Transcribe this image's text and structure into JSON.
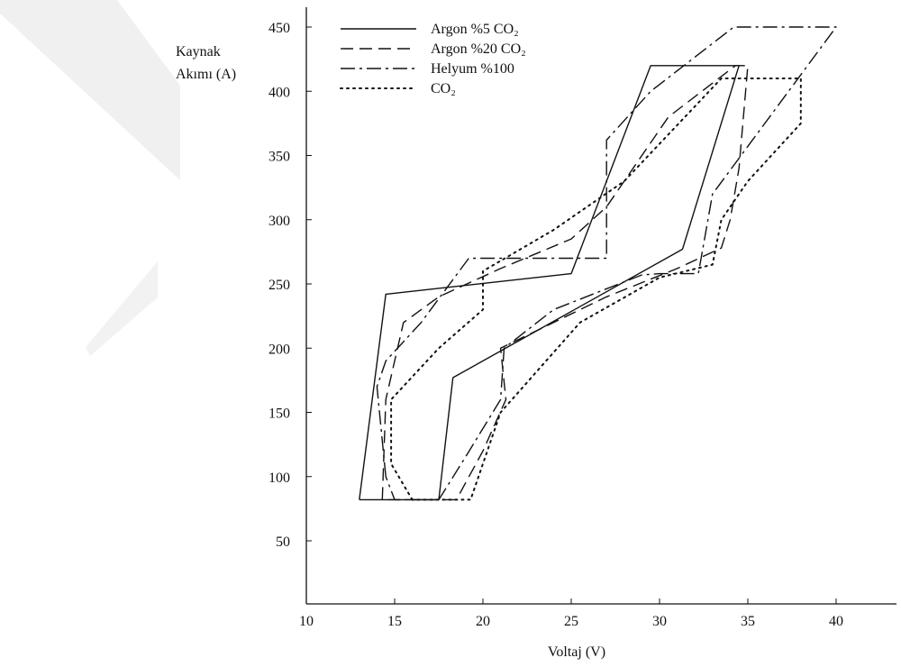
{
  "chart_data": {
    "type": "line",
    "title": "",
    "xlabel": "Voltaj (V)",
    "ylabel_line1": "Kaynak",
    "ylabel_line2": "Akımı (A)",
    "xlim": [
      10,
      42
    ],
    "ylim": [
      0,
      460
    ],
    "x_ticks": [
      "10",
      "15",
      "20",
      "25",
      "30",
      "35",
      "40"
    ],
    "y_ticks": [
      "50",
      "100",
      "150",
      "200",
      "250",
      "300",
      "350",
      "400",
      "450"
    ],
    "grid": false,
    "legend_position": "top-left",
    "legend_note": "subscripts in CO2 rendered as CO₂",
    "series": [
      {
        "name": "Argon %5 CO₂",
        "style": "solid",
        "color": "#111111",
        "points": [
          [
            13.0,
            82
          ],
          [
            14.5,
            242
          ],
          [
            25.0,
            258
          ],
          [
            29.5,
            420
          ],
          [
            34.5,
            420
          ],
          [
            31.3,
            277
          ],
          [
            18.3,
            177
          ],
          [
            17.5,
            82
          ],
          [
            13.0,
            82
          ]
        ]
      },
      {
        "name": "Argon %20 CO₂",
        "style": "dashed",
        "color": "#111111",
        "points": [
          [
            14.3,
            82
          ],
          [
            14.5,
            160
          ],
          [
            15.5,
            220
          ],
          [
            17.5,
            240
          ],
          [
            21.0,
            262
          ],
          [
            25.0,
            285
          ],
          [
            27.0,
            310
          ],
          [
            30.5,
            380
          ],
          [
            34.3,
            420
          ],
          [
            35.0,
            420
          ],
          [
            34.5,
            340
          ],
          [
            34.0,
            300
          ],
          [
            33.5,
            278
          ],
          [
            31.0,
            262
          ],
          [
            27.0,
            240
          ],
          [
            21.0,
            200
          ],
          [
            21.3,
            160
          ],
          [
            20.0,
            120
          ],
          [
            18.5,
            82
          ],
          [
            14.3,
            82
          ]
        ]
      },
      {
        "name": "Helyum %100",
        "style": "dashdot",
        "color": "#111111",
        "points": [
          [
            14.5,
            100
          ],
          [
            14.0,
            170
          ],
          [
            14.5,
            190
          ],
          [
            16.5,
            220
          ],
          [
            19.2,
            270
          ],
          [
            27.0,
            270
          ],
          [
            27.0,
            362
          ],
          [
            29.5,
            400
          ],
          [
            34.2,
            450
          ],
          [
            40.0,
            450
          ],
          [
            33.0,
            320
          ],
          [
            32.2,
            258
          ],
          [
            30.0,
            258
          ],
          [
            29.0,
            257
          ],
          [
            24.0,
            230
          ],
          [
            21.2,
            200
          ],
          [
            21.0,
            160
          ],
          [
            19.0,
            115
          ],
          [
            17.5,
            82
          ],
          [
            15.0,
            82
          ],
          [
            14.5,
            100
          ]
        ]
      },
      {
        "name": "CO₂",
        "style": "dotted",
        "color": "#111111",
        "points": [
          [
            16.0,
            82
          ],
          [
            14.8,
            110
          ],
          [
            14.8,
            160
          ],
          [
            17.5,
            200
          ],
          [
            20.0,
            230
          ],
          [
            20.0,
            260
          ],
          [
            24.0,
            292
          ],
          [
            28.0,
            330
          ],
          [
            33.5,
            410
          ],
          [
            38.0,
            410
          ],
          [
            38.0,
            375
          ],
          [
            35.0,
            330
          ],
          [
            33.5,
            300
          ],
          [
            33.0,
            265
          ],
          [
            30.0,
            255
          ],
          [
            25.5,
            220
          ],
          [
            21.0,
            150
          ],
          [
            20.0,
            110
          ],
          [
            19.3,
            82
          ],
          [
            16.0,
            82
          ]
        ]
      }
    ]
  }
}
